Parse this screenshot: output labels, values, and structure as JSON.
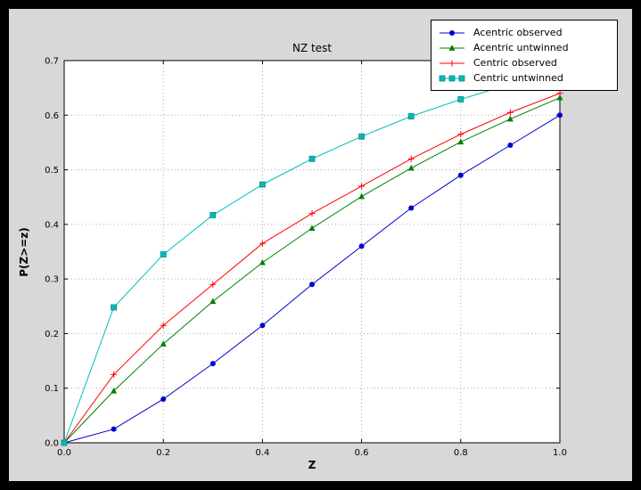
{
  "window": {
    "background": "#000000",
    "figure_background": "#d8d8d8",
    "plot_background": "#ffffff",
    "grid_color": "#ababab",
    "axis_color": "#000000"
  },
  "chart_data": {
    "type": "line",
    "title": "NZ test",
    "xlabel": "Z",
    "ylabel": "P(Z>=z)",
    "xlim": [
      0.0,
      1.0
    ],
    "ylim": [
      0.0,
      0.7
    ],
    "xticks": [
      0.0,
      0.2,
      0.4,
      0.6,
      0.8,
      1.0
    ],
    "xtick_labels": [
      "0.0",
      "0.2",
      "0.4",
      "0.6",
      "0.8",
      "1.0"
    ],
    "yticks": [
      0.0,
      0.1,
      0.2,
      0.3,
      0.4,
      0.5,
      0.6,
      0.7
    ],
    "ytick_labels": [
      "0.0",
      "0.1",
      "0.2",
      "0.3",
      "0.4",
      "0.5",
      "0.6",
      "0.7"
    ],
    "grid": true,
    "grid_style": "dotted",
    "legend_position": "upper right",
    "x": [
      0.0,
      0.1,
      0.2,
      0.3,
      0.4,
      0.5,
      0.6,
      0.7,
      0.8,
      0.9,
      1.0
    ],
    "series": [
      {
        "name": "Acentric observed",
        "color": "#0000cd",
        "marker": "circle",
        "values": [
          0.0,
          0.025,
          0.08,
          0.145,
          0.215,
          0.29,
          0.36,
          0.43,
          0.49,
          0.545,
          0.6
        ]
      },
      {
        "name": "Acentric untwinned",
        "color": "#007f00",
        "marker": "triangle",
        "values": [
          0.0,
          0.095,
          0.181,
          0.259,
          0.33,
          0.393,
          0.451,
          0.503,
          0.551,
          0.593,
          0.632
        ]
      },
      {
        "name": "Centric observed",
        "color": "#ff0000",
        "marker": "plus",
        "values": [
          0.0,
          0.125,
          0.215,
          0.29,
          0.365,
          0.42,
          0.47,
          0.52,
          0.565,
          0.605,
          0.64
        ]
      },
      {
        "name": "Centric untwinned",
        "color": "#00bcbc",
        "marker": "square",
        "values": [
          0.0,
          0.248,
          0.345,
          0.417,
          0.473,
          0.52,
          0.561,
          0.598,
          0.629,
          0.657,
          0.683
        ]
      }
    ]
  }
}
